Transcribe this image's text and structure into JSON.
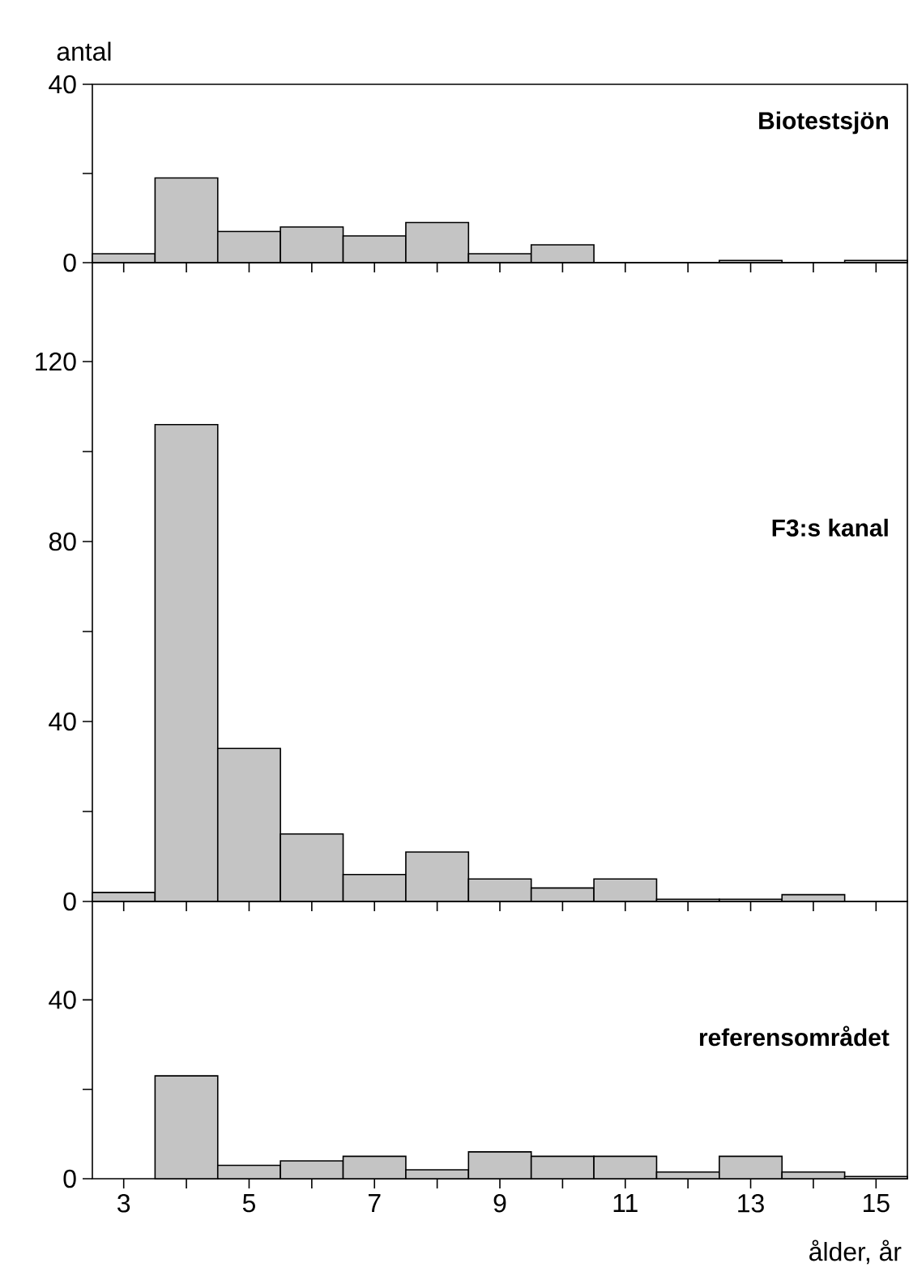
{
  "chart_data": [
    {
      "type": "histogram",
      "title": "Biotestsjön",
      "ylabel": "antal",
      "color": "#c4c4c4",
      "tick_labels": "y",
      "bins": [
        2.5,
        3.5,
        4.5,
        5.5,
        6.5,
        7.5,
        8.5,
        9.5,
        10.5,
        11.5,
        12.5,
        13.5,
        14.5,
        15.5
      ],
      "values": [
        2,
        19,
        7,
        8,
        6,
        9,
        2,
        4,
        0,
        0,
        0.5,
        0,
        0.5
      ],
      "xlim": [
        2.5,
        15.5
      ],
      "ylim": [
        0,
        40
      ],
      "xticks": [
        3,
        4,
        5,
        6,
        7,
        8,
        9,
        10,
        11,
        12,
        13,
        14,
        15
      ],
      "yticks": [
        0,
        {
          "value": 20,
          "label": null
        },
        40
      ]
    },
    {
      "type": "histogram",
      "title": "F3:s kanal",
      "color": "#c4c4c4",
      "tick_labels": "y",
      "bins": [
        2.5,
        3.5,
        4.5,
        5.5,
        6.5,
        7.5,
        8.5,
        9.5,
        10.5,
        11.5,
        12.5,
        13.5,
        14.5,
        15.5
      ],
      "values": [
        2,
        106,
        34,
        15,
        6,
        11,
        5,
        3,
        5,
        0.5,
        0.5,
        1.5,
        0
      ],
      "xlim": [
        2.5,
        15.5
      ],
      "ylim": [
        0,
        142
      ],
      "xticks": [
        3,
        4,
        5,
        6,
        7,
        8,
        9,
        10,
        11,
        12,
        13,
        14,
        15
      ],
      "yticks": [
        0,
        {
          "value": 20,
          "label": null
        },
        40,
        {
          "value": 60,
          "label": null
        },
        80,
        {
          "value": 100,
          "label": null
        },
        120
      ]
    },
    {
      "type": "histogram",
      "title": "referensområdet",
      "xlabel": "ålder, år",
      "color": "#c4c4c4",
      "bins": [
        2.5,
        3.5,
        4.5,
        5.5,
        6.5,
        7.5,
        8.5,
        9.5,
        10.5,
        11.5,
        12.5,
        13.5,
        14.5,
        15.5
      ],
      "values": [
        0,
        23,
        3,
        4,
        5,
        2,
        6,
        5,
        5,
        1.5,
        5,
        1.5,
        0.5
      ],
      "xlim": [
        2.5,
        15.5
      ],
      "ylim": [
        0,
        62
      ],
      "xticks": [
        {
          "value": 3,
          "label": "3"
        },
        {
          "value": 4,
          "label": null
        },
        {
          "value": 5,
          "label": "5"
        },
        {
          "value": 6,
          "label": null
        },
        {
          "value": 7,
          "label": "7"
        },
        {
          "value": 8,
          "label": null
        },
        {
          "value": 9,
          "label": "9"
        },
        {
          "value": 10,
          "label": null
        },
        {
          "value": 11,
          "label": "11"
        },
        {
          "value": 12,
          "label": null
        },
        {
          "value": 13,
          "label": "13"
        },
        {
          "value": 14,
          "label": null
        },
        {
          "value": 15,
          "label": "15"
        }
      ],
      "yticks": [
        0,
        {
          "value": 20,
          "label": null
        },
        40
      ]
    }
  ]
}
